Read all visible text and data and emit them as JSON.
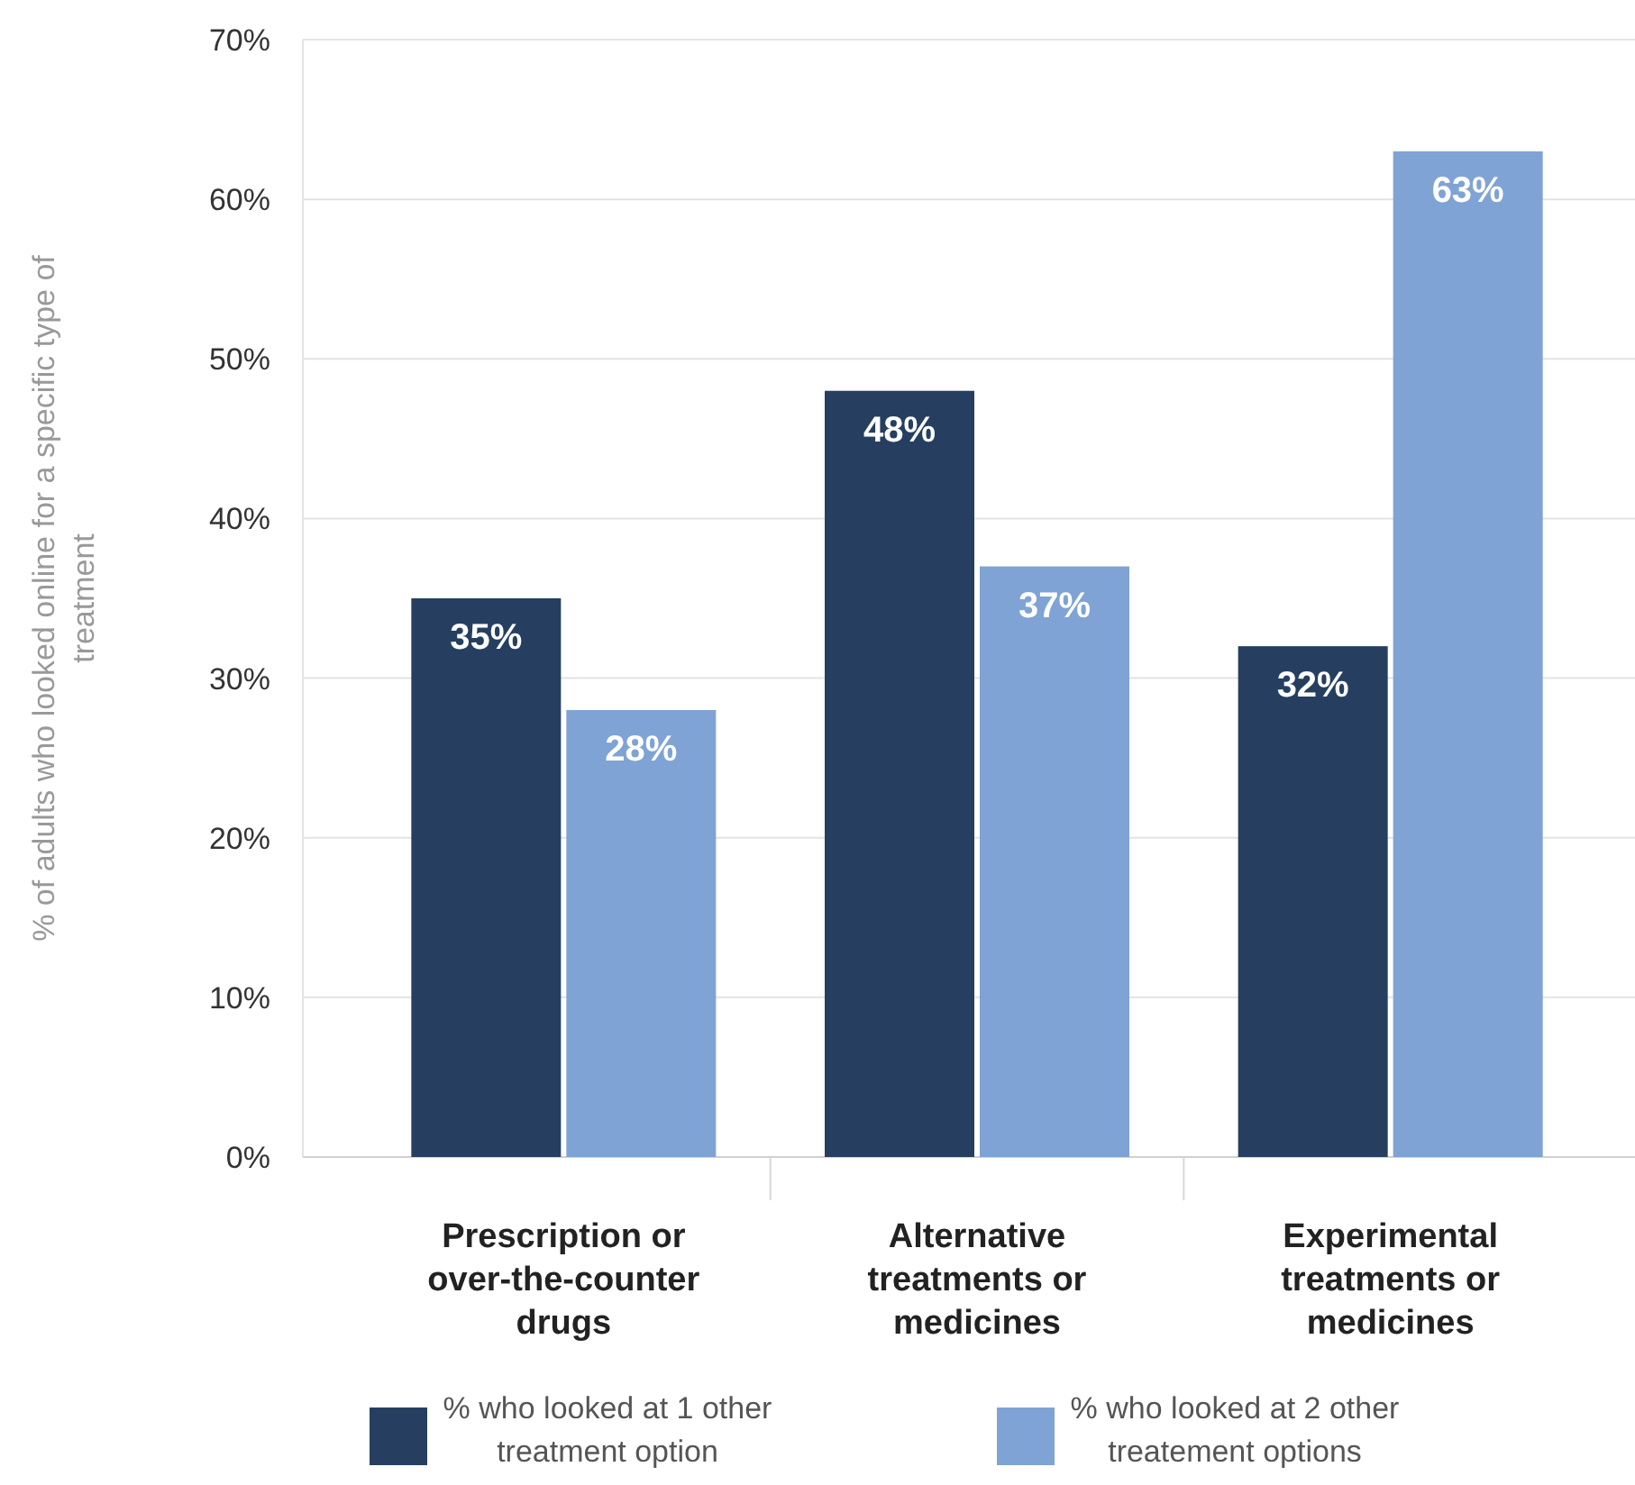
{
  "chart_data": {
    "type": "bar",
    "ylabel": "% of adults who looked online for a specific type of treatment",
    "categories": [
      "Prescription or over-the-counter drugs",
      "Alternative treatments or medicines",
      "Experimental treatments or medicines"
    ],
    "series": [
      {
        "name": "% who looked at 1 other treatment option",
        "color": "#263f60",
        "values": [
          35,
          48,
          32
        ],
        "value_labels": [
          "35%",
          "48%",
          "32%"
        ]
      },
      {
        "name": "% who looked at 2 other treatement options",
        "color": "#7fa3d4",
        "values": [
          28,
          37,
          63
        ],
        "value_labels": [
          "28%",
          "37%",
          "63%"
        ]
      }
    ],
    "ylim": [
      0,
      70
    ],
    "yticks": [
      {
        "value": 0,
        "label": "0%"
      },
      {
        "value": 10,
        "label": "10%"
      },
      {
        "value": 20,
        "label": "20%"
      },
      {
        "value": 30,
        "label": "30%"
      },
      {
        "value": 40,
        "label": "40%"
      },
      {
        "value": 50,
        "label": "50%"
      },
      {
        "value": 60,
        "label": "60%"
      },
      {
        "value": 70,
        "label": "70%"
      }
    ],
    "grid": "y",
    "legend": "bottom"
  }
}
